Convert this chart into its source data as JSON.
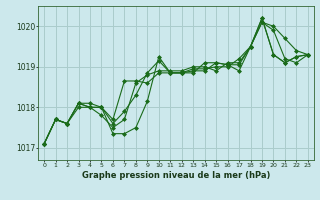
{
  "title": "Graphe pression niveau de la mer (hPa)",
  "bg_color": "#cce8ec",
  "grid_color": "#aacccc",
  "line_color": "#1a6b1a",
  "x_ticks": [
    0,
    1,
    2,
    3,
    4,
    5,
    6,
    7,
    8,
    9,
    10,
    11,
    12,
    13,
    14,
    15,
    16,
    17,
    18,
    19,
    20,
    21,
    22,
    23
  ],
  "ylim": [
    1016.7,
    1020.5
  ],
  "yticks": [
    1017,
    1018,
    1019,
    1020
  ],
  "series": [
    [
      1017.1,
      1017.7,
      1017.6,
      1018.1,
      1018.0,
      1017.8,
      1017.5,
      1017.7,
      1018.6,
      1018.8,
      1018.9,
      1018.9,
      1018.9,
      1019.0,
      1019.0,
      1018.9,
      1019.1,
      1019.1,
      1019.5,
      1020.1,
      1020.0,
      1019.7,
      1019.4,
      1019.3
    ],
    [
      1017.1,
      1017.7,
      1017.6,
      1018.1,
      1018.0,
      1018.0,
      1017.6,
      1017.9,
      1018.3,
      1018.85,
      1019.15,
      1018.85,
      1018.85,
      1018.9,
      1018.9,
      1019.1,
      1019.05,
      1018.9,
      1019.5,
      1020.2,
      1019.3,
      1019.1,
      1019.25,
      1019.3
    ],
    [
      1017.1,
      1017.7,
      1017.6,
      1018.0,
      1018.0,
      1018.0,
      1017.7,
      1018.65,
      1018.65,
      1018.6,
      1018.85,
      1018.85,
      1018.85,
      1018.95,
      1018.95,
      1019.0,
      1019.0,
      1019.2,
      1019.5,
      1020.1,
      1019.9,
      1019.2,
      1019.1,
      1019.3
    ],
    [
      1017.1,
      1017.7,
      1017.6,
      1018.1,
      1018.1,
      1018.0,
      1017.35,
      1017.35,
      1017.5,
      1018.15,
      1019.25,
      1018.85,
      1018.85,
      1018.85,
      1019.1,
      1019.1,
      1019.05,
      1019.05,
      1019.5,
      1020.2,
      1019.3,
      1019.1,
      1019.25,
      1019.3
    ]
  ]
}
